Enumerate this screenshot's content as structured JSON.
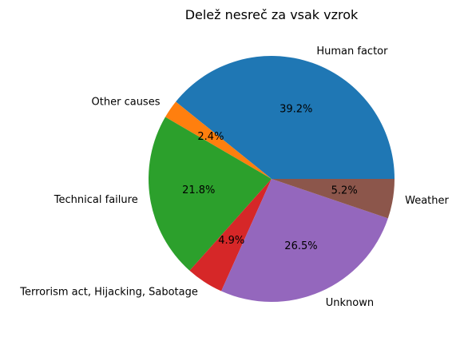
{
  "chart_data": {
    "type": "pie",
    "title": "Delež nesreč za vsak vzrok",
    "slices": [
      {
        "label": "Human factor",
        "value": 39.2,
        "pct_label": "39.2%",
        "color": "#1f77b4"
      },
      {
        "label": "Other causes",
        "value": 2.4,
        "pct_label": "2.4%",
        "color": "#ff7f0e"
      },
      {
        "label": "Technical failure",
        "value": 21.8,
        "pct_label": "21.8%",
        "color": "#2ca02c"
      },
      {
        "label": "Terrorism act, Hijacking, Sabotage",
        "value": 4.9,
        "pct_label": "4.9%",
        "color": "#d62728"
      },
      {
        "label": "Unknown",
        "value": 26.5,
        "pct_label": "26.5%",
        "color": "#9467bd"
      },
      {
        "label": "Weather",
        "value": 5.2,
        "pct_label": "5.2%",
        "color": "#8c564b"
      }
    ],
    "start_angle_deg": 0,
    "direction": "counterclockwise"
  }
}
